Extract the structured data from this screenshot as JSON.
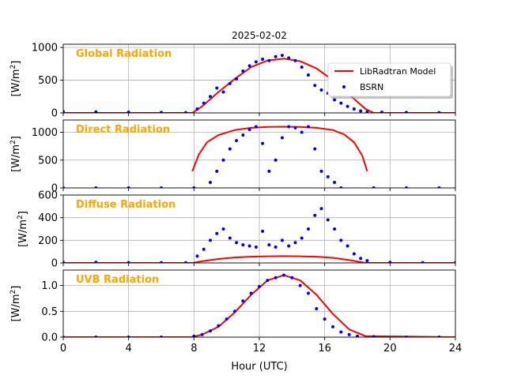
{
  "figure": {
    "title": "2025-02-02"
  },
  "colors": {
    "model": "#FF0000",
    "bsrn": "#0000EE",
    "label": "#FFA500",
    "grid": "#B0B0B0"
  },
  "legend": {
    "placement": "upper-right of first panel",
    "items": [
      "LibRadtran Model",
      "BSRN"
    ]
  },
  "chart_data": [
    {
      "type": "line+scatter",
      "panel_title": "Global Radiation",
      "ylabel": "[W/m$^2$]",
      "ylim": [
        0,
        1050
      ],
      "yticks": [
        0,
        500,
        1000
      ],
      "xlim": [
        0,
        24
      ],
      "xticks": [
        0,
        4,
        8,
        12,
        16,
        20,
        24
      ],
      "xlabel": "",
      "grid": true,
      "series": [
        {
          "name": "LibRadtran Model",
          "kind": "line",
          "x": [
            0,
            7.9,
            8.5,
            9.5,
            10.5,
            11.5,
            12.5,
            13.5,
            14.5,
            15.5,
            16.5,
            17.5,
            18.5,
            19,
            24
          ],
          "y": [
            0,
            0,
            100,
            320,
            520,
            700,
            800,
            830,
            790,
            680,
            500,
            280,
            60,
            0,
            0
          ]
        },
        {
          "name": "BSRN",
          "kind": "scatter",
          "x": [
            0,
            2,
            4,
            6,
            7.5,
            8.2,
            8.6,
            9.0,
            9.4,
            9.8,
            10.2,
            10.6,
            11.0,
            11.4,
            11.8,
            12.2,
            12.6,
            13.0,
            13.4,
            13.8,
            14.2,
            14.6,
            15.0,
            15.4,
            15.8,
            16.2,
            16.6,
            17.0,
            17.4,
            17.8,
            18.2,
            18.6,
            19.5,
            21,
            23
          ],
          "y": [
            20,
            15,
            10,
            8,
            5,
            60,
            150,
            250,
            380,
            320,
            450,
            520,
            640,
            720,
            780,
            820,
            800,
            860,
            880,
            840,
            800,
            700,
            580,
            420,
            350,
            300,
            200,
            150,
            100,
            60,
            30,
            15,
            10,
            8,
            5
          ]
        }
      ]
    },
    {
      "type": "line+scatter",
      "panel_title": "Direct Radiation",
      "ylabel": "[W/m$^2$]",
      "ylim": [
        0,
        1220
      ],
      "yticks": [
        0,
        500,
        1000
      ],
      "xlim": [
        0,
        24
      ],
      "xticks": [
        0,
        4,
        8,
        12,
        16,
        20,
        24
      ],
      "xlabel": "",
      "grid": true,
      "series": [
        {
          "name": "LibRadtran Model",
          "kind": "line",
          "x": [
            7.9,
            8.3,
            8.8,
            9.5,
            10.5,
            11.5,
            12.5,
            13.5,
            14.5,
            15.5,
            16.5,
            17.2,
            17.8,
            18.3,
            18.6
          ],
          "y": [
            300,
            600,
            820,
            950,
            1040,
            1080,
            1095,
            1100,
            1095,
            1080,
            1040,
            960,
            820,
            580,
            300
          ]
        },
        {
          "name": "BSRN",
          "kind": "scatter",
          "x": [
            0,
            2,
            4,
            6,
            8,
            9.0,
            9.4,
            9.8,
            10.2,
            10.6,
            11.0,
            11.4,
            11.8,
            12.2,
            12.6,
            13.0,
            13.4,
            13.8,
            14.2,
            14.6,
            15.0,
            15.4,
            15.8,
            16.2,
            16.6,
            17,
            19,
            21,
            23
          ],
          "y": [
            0,
            0,
            0,
            0,
            0,
            100,
            300,
            500,
            700,
            850,
            950,
            1050,
            1100,
            800,
            300,
            500,
            900,
            1100,
            1080,
            1000,
            1100,
            700,
            300,
            200,
            100,
            0,
            0,
            0,
            0
          ]
        }
      ]
    },
    {
      "type": "line+scatter",
      "panel_title": "Diffuse Radiation",
      "ylabel": "[W/m$^2$]",
      "ylim": [
        0,
        600
      ],
      "yticks": [
        0,
        200,
        400,
        600
      ],
      "xlim": [
        0,
        24
      ],
      "xticks": [
        0,
        4,
        8,
        12,
        16,
        20,
        24
      ],
      "xlabel": "",
      "grid": true,
      "series": [
        {
          "name": "LibRadtran Model",
          "kind": "line",
          "x": [
            0,
            7.9,
            8.5,
            9.5,
            10.5,
            11.5,
            12.5,
            13.5,
            14.5,
            15.5,
            16.5,
            17.5,
            18.5,
            24
          ],
          "y": [
            0,
            0,
            15,
            35,
            48,
            55,
            58,
            60,
            58,
            55,
            45,
            25,
            0,
            0
          ]
        },
        {
          "name": "BSRN",
          "kind": "scatter",
          "x": [
            0,
            2,
            4,
            6,
            7.5,
            8.2,
            8.6,
            9.0,
            9.4,
            9.8,
            10.2,
            10.6,
            11.0,
            11.4,
            11.8,
            12.2,
            12.6,
            13.0,
            13.4,
            13.8,
            14.2,
            14.6,
            15.0,
            15.4,
            15.8,
            16.2,
            16.6,
            17.0,
            17.4,
            17.8,
            18.2,
            18.6,
            20,
            22,
            24
          ],
          "y": [
            5,
            5,
            3,
            3,
            2,
            60,
            120,
            200,
            260,
            300,
            220,
            180,
            160,
            150,
            140,
            280,
            160,
            140,
            200,
            150,
            180,
            220,
            300,
            420,
            480,
            380,
            300,
            200,
            150,
            80,
            40,
            20,
            5,
            3,
            2
          ]
        }
      ]
    },
    {
      "type": "line+scatter",
      "panel_title": "UVB Radiation",
      "ylabel": "[W/m$^2$]",
      "ylim": [
        0,
        1.3
      ],
      "yticks": [
        0.0,
        0.5,
        1.0
      ],
      "ytick_labels": [
        "0.0",
        "0.5",
        "1.0"
      ],
      "xlim": [
        0,
        24
      ],
      "xticks": [
        0,
        4,
        8,
        12,
        16,
        20,
        24
      ],
      "xlabel": "Hour (UTC)",
      "grid": true,
      "series": [
        {
          "name": "LibRadtran Model",
          "kind": "line",
          "x": [
            0,
            7.9,
            8.5,
            9.5,
            10.5,
            11.5,
            12.5,
            13.5,
            14.5,
            15.5,
            16.5,
            17.5,
            18.5,
            24
          ],
          "y": [
            0,
            0,
            0.05,
            0.2,
            0.48,
            0.82,
            1.1,
            1.2,
            1.1,
            0.82,
            0.45,
            0.15,
            0.02,
            0
          ]
        },
        {
          "name": "BSRN",
          "kind": "scatter",
          "x": [
            0,
            2,
            4,
            6,
            8,
            8.5,
            9.0,
            9.5,
            10.0,
            10.5,
            11.0,
            11.5,
            12.0,
            12.5,
            13.0,
            13.5,
            14.0,
            14.5,
            15.0,
            15.5,
            16.0,
            16.5,
            17.0,
            17.5,
            18.0,
            19,
            21,
            23
          ],
          "y": [
            0,
            0,
            0,
            0,
            0.02,
            0.05,
            0.12,
            0.22,
            0.35,
            0.5,
            0.7,
            0.85,
            0.98,
            1.1,
            1.15,
            1.2,
            1.15,
            1.0,
            0.85,
            0.55,
            0.35,
            0.2,
            0.1,
            0.05,
            0.02,
            0.01,
            0,
            0
          ]
        }
      ]
    }
  ]
}
